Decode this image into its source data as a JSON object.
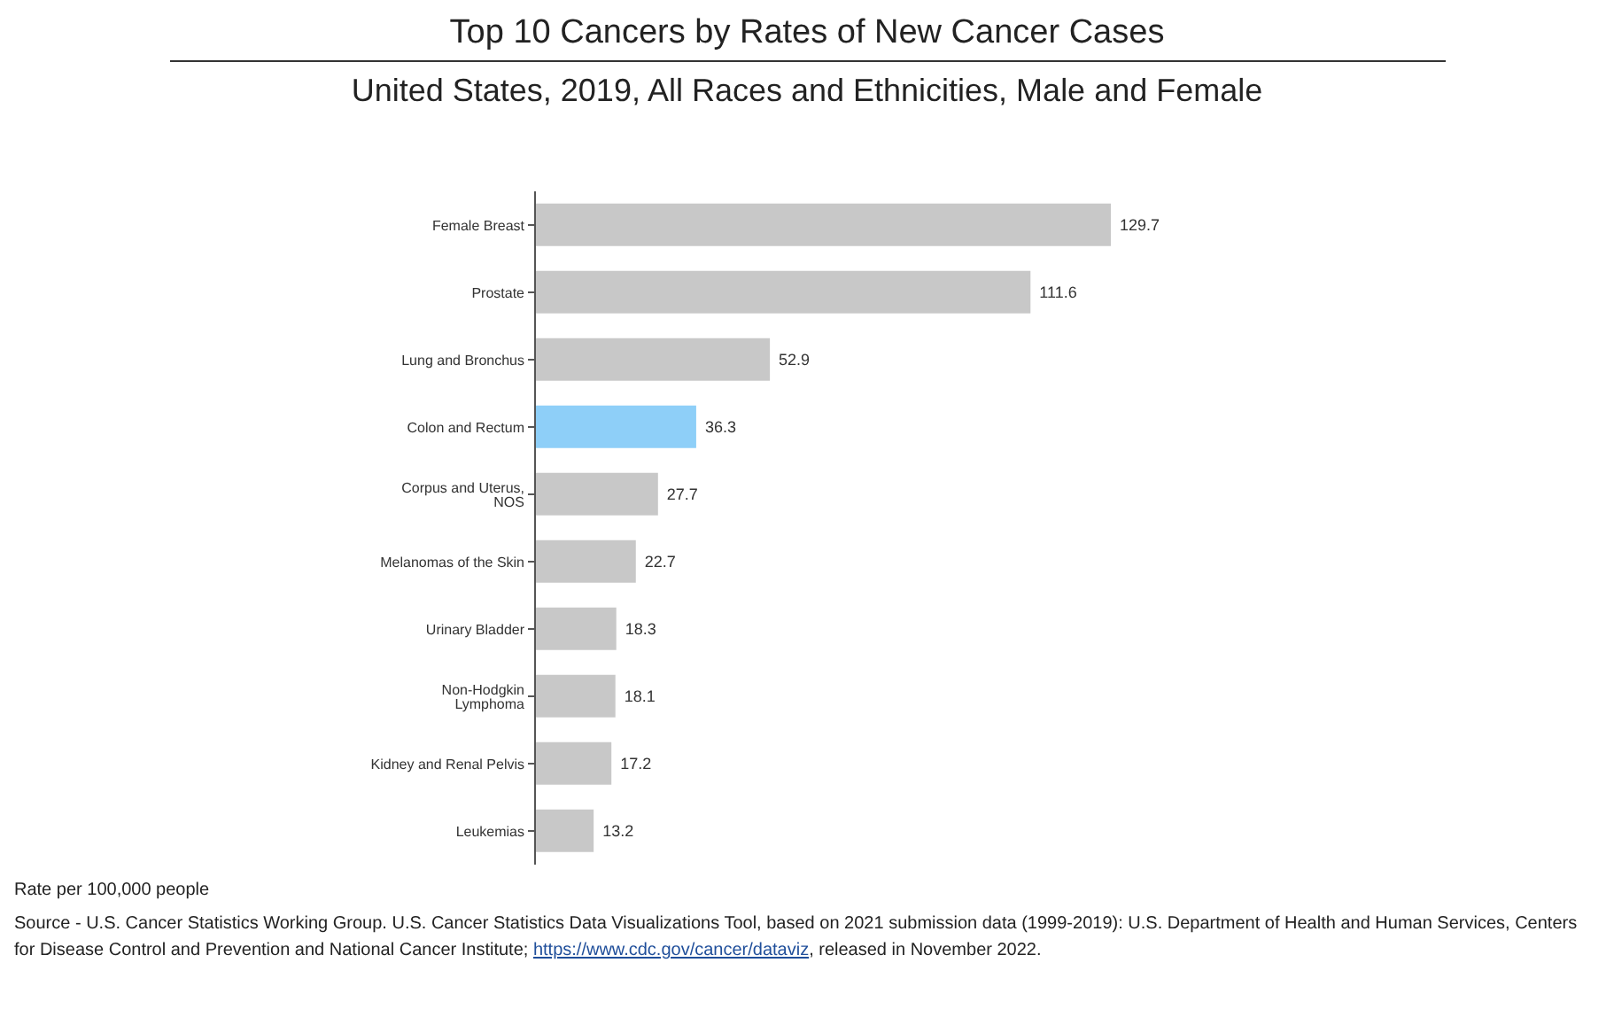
{
  "chart_data": {
    "type": "bar",
    "orientation": "horizontal",
    "title": "Top 10 Cancers by Rates of New Cancer Cases",
    "subtitle": "United States, 2019, All Races and Ethnicities, Male and Female",
    "categories": [
      "Female Breast",
      "Prostate",
      "Lung and Bronchus",
      "Colon and Rectum",
      "Corpus and Uterus, NOS",
      "Melanomas of the Skin",
      "Urinary Bladder",
      "Non-Hodgkin Lymphoma",
      "Kidney and Renal Pelvis",
      "Leukemias"
    ],
    "values": [
      129.7,
      111.6,
      52.9,
      36.3,
      27.7,
      22.7,
      18.3,
      18.1,
      17.2,
      13.2
    ],
    "colors": [
      "#c8c8c8",
      "#c8c8c8",
      "#c8c8c8",
      "#8ecff8",
      "#c8c8c8",
      "#c8c8c8",
      "#c8c8c8",
      "#c8c8c8",
      "#c8c8c8",
      "#c8c8c8"
    ],
    "data_labels": true,
    "grid": false,
    "legend": false,
    "annotations": [
      "Rate per 100,000 people",
      "Source - U.S. Cancer Statistics Working Group. U.S. Cancer Statistics Data Visualizations Tool, based on 2021 submission data (1999-2019): U.S. Department of Health and Human Services, Centers for Disease Control and Prevention and National Cancer Institute; https://www.cdc.gov/cancer/dataviz, released in November 2022."
    ]
  }
}
